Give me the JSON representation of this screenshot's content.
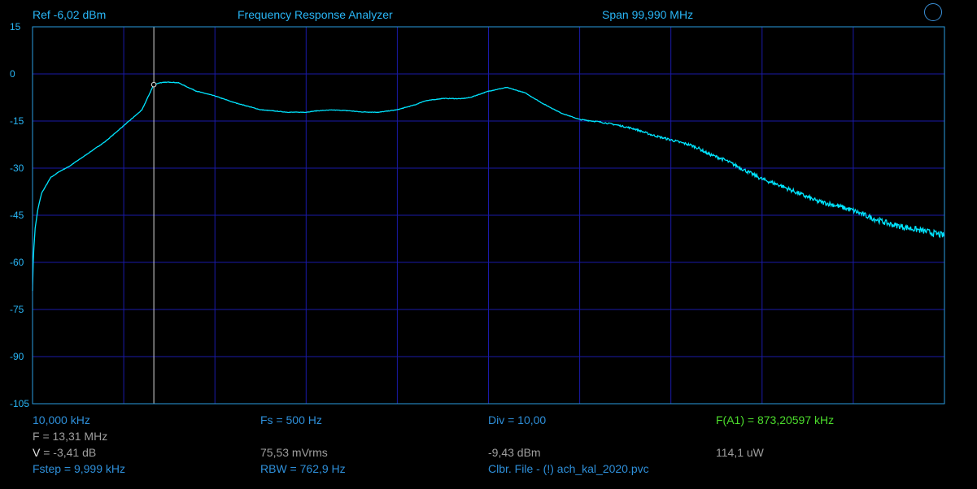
{
  "header": {
    "ref": "Ref  -6,02 dBm",
    "title": "Frequency Response Analyzer",
    "span": "Span 99,990 MHz"
  },
  "info": {
    "start_freq": "10,000 kHz",
    "fs": "Fs = 500 Hz",
    "div": "Div = 10,00",
    "fa1": "F(A1) = 873,20597 kHz",
    "f": "F = 13,31 MHz",
    "v_label": "V",
    "v_value": " = -3,41 dB",
    "mvrms": "75,53 mVrms",
    "dbm": "-9,43 dBm",
    "power": "114,1 uW",
    "fstep": "Fstep = 9,999 kHz",
    "rbw": "RBW = 762,9 Hz",
    "clbr": "Clbr. File - (!) ach_kal_2020.pvc"
  },
  "colors": {
    "background": "#000000",
    "grid": "#1a1aa8",
    "frame": "#2a9be0",
    "trace": "#00e5ff",
    "text_blue": "#2e8fd9",
    "text_gray": "#9e9e9e",
    "text_green": "#4cdc2c",
    "header_text": "#29b6f6"
  },
  "chart_data": {
    "type": "line",
    "title": "Frequency Response Analyzer",
    "xlabel": "",
    "ylabel": "",
    "ylim": [
      -105,
      15
    ],
    "yticks": [
      "15",
      "0",
      "-15",
      "-30",
      "-45",
      "-60",
      "-75",
      "-90",
      "-105"
    ],
    "ytick_values": [
      15,
      0,
      -15,
      -30,
      -45,
      -60,
      -75,
      -90,
      -105
    ],
    "x_divisions": 10,
    "xlim_mhz": [
      0.01,
      100.0
    ],
    "grid": true,
    "marker": {
      "x_mhz": 13.31,
      "y": -3.41
    },
    "series": [
      {
        "x_mhz": [
          0.01,
          0.1,
          0.3,
          0.6,
          1.0,
          2.0,
          3.0,
          4.0,
          5.0,
          6.0,
          7.0,
          8.0,
          9.0,
          10.0,
          11.0,
          12.0,
          13.31,
          14.0,
          15.0,
          16.0,
          17.0,
          18.0,
          20.0,
          22.0,
          25.0,
          28.0,
          30.0,
          31.0,
          32.0,
          33.0,
          34.0,
          35.0,
          36.0,
          38.0,
          40.0,
          42.0,
          43.0,
          45.0,
          47.0,
          48.0,
          50.0,
          52.0,
          54.0,
          56.0,
          58.0,
          60.0,
          62.0,
          64.0,
          66.0,
          68.0,
          70.0,
          71.0,
          72.0,
          73.0,
          74.0,
          76.0,
          78.0,
          80.0,
          82.0,
          84.0,
          86.0,
          88.0,
          90.0,
          92.0,
          94.0,
          96.0,
          98.0,
          100.0
        ],
        "values": [
          -69,
          -58,
          -49,
          -43,
          -38,
          -33,
          -31,
          -29.5,
          -27.5,
          -25.5,
          -23.5,
          -21.5,
          -19,
          -16.5,
          -14,
          -11.5,
          -3.4,
          -2.8,
          -2.6,
          -2.8,
          -4.2,
          -5.5,
          -7,
          -9,
          -11.4,
          -12.2,
          -12.2,
          -11.8,
          -11.6,
          -11.5,
          -11.6,
          -11.8,
          -12.1,
          -12.2,
          -11.4,
          -9.8,
          -8.6,
          -7.8,
          -7.9,
          -7.5,
          -5.5,
          -4.3,
          -6,
          -9.5,
          -12.5,
          -14.5,
          -15.2,
          -16.2,
          -17.5,
          -19.5,
          -21,
          -21.8,
          -22.5,
          -23.6,
          -25.3,
          -27.5,
          -30.5,
          -33.5,
          -35.5,
          -38,
          -40.5,
          -41.8,
          -43.5,
          -45.8,
          -47.8,
          -49,
          -50.2,
          -51.5
        ]
      }
    ]
  }
}
